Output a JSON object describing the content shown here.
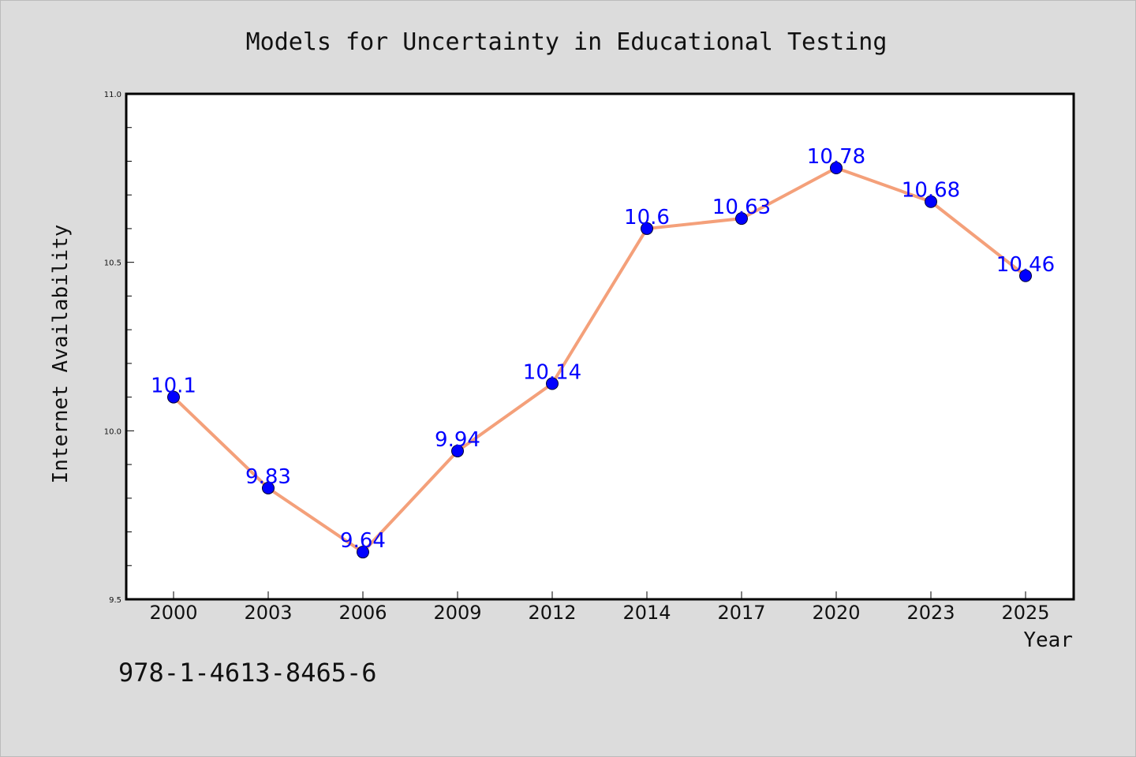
{
  "chart_data": {
    "type": "line",
    "title": "Models for Uncertainty in Educational Testing",
    "xlabel": "Year",
    "ylabel": "Internet Availability",
    "categories": [
      "2000",
      "2003",
      "2006",
      "2009",
      "2012",
      "2014",
      "2017",
      "2020",
      "2023",
      "2025"
    ],
    "series": [
      {
        "values": [
          10.1,
          9.83,
          9.64,
          9.94,
          10.14,
          10.6,
          10.63,
          10.78,
          10.68,
          10.46
        ],
        "labels": [
          "10.1",
          "9.83",
          "9.64",
          "9.94",
          "10.14",
          "10.6",
          "10.63",
          "10.78",
          "10.68",
          "10.46"
        ]
      }
    ],
    "ylim": [
      9.5,
      11.0
    ],
    "yticks": [
      "9.5",
      "10.0",
      "10.5",
      "11.0"
    ],
    "grid": false,
    "legend": "none"
  },
  "footer_text": "978-1-4613-8465-6",
  "colors": {
    "background": "#dcdcdc",
    "plot_background": "#ffffff",
    "line": "#f4a07a",
    "marker": "#0000ff",
    "data_label": "#0000ff"
  }
}
